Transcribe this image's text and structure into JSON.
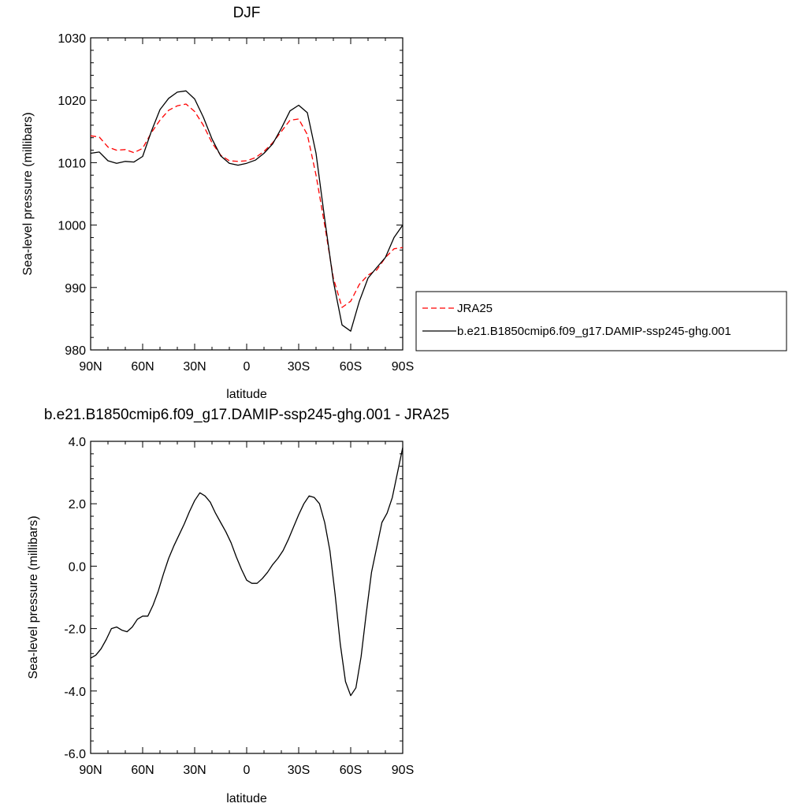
{
  "chart_data": [
    {
      "type": "line",
      "title": "DJF",
      "xlabel": "latitude",
      "ylabel": "Sea-level pressure (millibars)",
      "xlim": [
        -90,
        90
      ],
      "ylim": [
        980,
        1030
      ],
      "x_ticks": [
        "90N",
        "60N",
        "30N",
        "0",
        "30S",
        "60S",
        "90S"
      ],
      "y_ticks": [
        "980",
        "990",
        "1000",
        "1010",
        "1020",
        "1030"
      ],
      "grid": false,
      "legend_placement": "right",
      "series": [
        {
          "name": "JRA25",
          "color": "#ff0000",
          "dash": "dashed",
          "x": [
            -90,
            -85,
            -80,
            -75,
            -70,
            -65,
            -60,
            -55,
            -50,
            -45,
            -40,
            -35,
            -30,
            -25,
            -20,
            -15,
            -10,
            -5,
            0,
            5,
            10,
            15,
            20,
            25,
            30,
            35,
            40,
            45,
            50,
            55,
            60,
            65,
            70,
            75,
            80,
            85,
            90
          ],
          "values": [
            1014.3,
            1014.1,
            1012.5,
            1012.0,
            1012.1,
            1011.6,
            1012.3,
            1014.8,
            1016.8,
            1018.4,
            1019.1,
            1019.4,
            1018.2,
            1016.0,
            1013.2,
            1011.2,
            1010.3,
            1010.2,
            1010.3,
            1010.8,
            1011.8,
            1013.2,
            1015.0,
            1016.8,
            1017.0,
            1014.5,
            1008.0,
            1000.0,
            991.5,
            986.8,
            987.8,
            990.5,
            992.0,
            992.8,
            994.8,
            996.2,
            996.4
          ]
        },
        {
          "name": "b.e21.B1850cmip6.f09_g17.DAMIP-ssp245-ghg.001",
          "color": "#000000",
          "dash": "solid",
          "x": [
            -90,
            -85,
            -80,
            -75,
            -70,
            -65,
            -60,
            -55,
            -50,
            -45,
            -40,
            -35,
            -30,
            -25,
            -20,
            -15,
            -10,
            -5,
            0,
            5,
            10,
            15,
            20,
            25,
            30,
            35,
            40,
            45,
            50,
            55,
            60,
            65,
            70,
            75,
            80,
            85,
            90
          ],
          "values": [
            1011.5,
            1011.7,
            1010.3,
            1009.9,
            1010.2,
            1010.1,
            1011.0,
            1015.0,
            1018.5,
            1020.3,
            1021.3,
            1021.5,
            1020.2,
            1017.3,
            1013.8,
            1011.1,
            1009.9,
            1009.6,
            1009.9,
            1010.4,
            1011.5,
            1013.0,
            1015.5,
            1018.3,
            1019.2,
            1018.0,
            1011.5,
            1001.0,
            991.0,
            984.0,
            983.0,
            987.8,
            991.5,
            993.2,
            994.8,
            998.0,
            1000.0
          ]
        }
      ]
    },
    {
      "type": "line",
      "title": "b.e21.B1850cmip6.f09_g17.DAMIP-ssp245-ghg.001 - JRA25",
      "xlabel": "latitude",
      "ylabel": "Sea-level pressure (millibars)",
      "xlim": [
        -90,
        90
      ],
      "ylim": [
        -6.0,
        4.0
      ],
      "x_ticks": [
        "90N",
        "60N",
        "30N",
        "0",
        "30S",
        "60S",
        "90S"
      ],
      "y_ticks": [
        "-6.0",
        "-4.0",
        "-2.0",
        "0.0",
        "2.0",
        "4.0"
      ],
      "grid": false,
      "series": [
        {
          "color": "#000000",
          "dash": "solid",
          "x": [
            -90,
            -87,
            -84,
            -81,
            -78,
            -75,
            -72,
            -69,
            -66,
            -63,
            -60,
            -57,
            -54,
            -51,
            -48,
            -45,
            -42,
            -39,
            -36,
            -33,
            -30,
            -27,
            -24,
            -21,
            -18,
            -15,
            -12,
            -9,
            -6,
            -3,
            0,
            3,
            6,
            9,
            12,
            15,
            18,
            21,
            24,
            27,
            30,
            33,
            36,
            39,
            42,
            45,
            48,
            51,
            54,
            57,
            60,
            63,
            66,
            69,
            72,
            75,
            78,
            81,
            84,
            87,
            90
          ],
          "values": [
            -2.95,
            -2.85,
            -2.65,
            -2.35,
            -2.0,
            -1.95,
            -2.05,
            -2.1,
            -1.95,
            -1.7,
            -1.6,
            -1.6,
            -1.25,
            -0.8,
            -0.25,
            0.25,
            0.65,
            1.0,
            1.35,
            1.75,
            2.1,
            2.35,
            2.25,
            2.05,
            1.7,
            1.4,
            1.1,
            0.75,
            0.3,
            -0.1,
            -0.45,
            -0.55,
            -0.55,
            -0.4,
            -0.2,
            0.05,
            0.25,
            0.5,
            0.85,
            1.25,
            1.65,
            2.0,
            2.25,
            2.2,
            2.0,
            1.4,
            0.5,
            -0.9,
            -2.5,
            -3.7,
            -4.15,
            -3.9,
            -2.9,
            -1.5,
            -0.2,
            0.6,
            1.4,
            1.7,
            2.2,
            3.0,
            3.8
          ]
        }
      ]
    }
  ]
}
